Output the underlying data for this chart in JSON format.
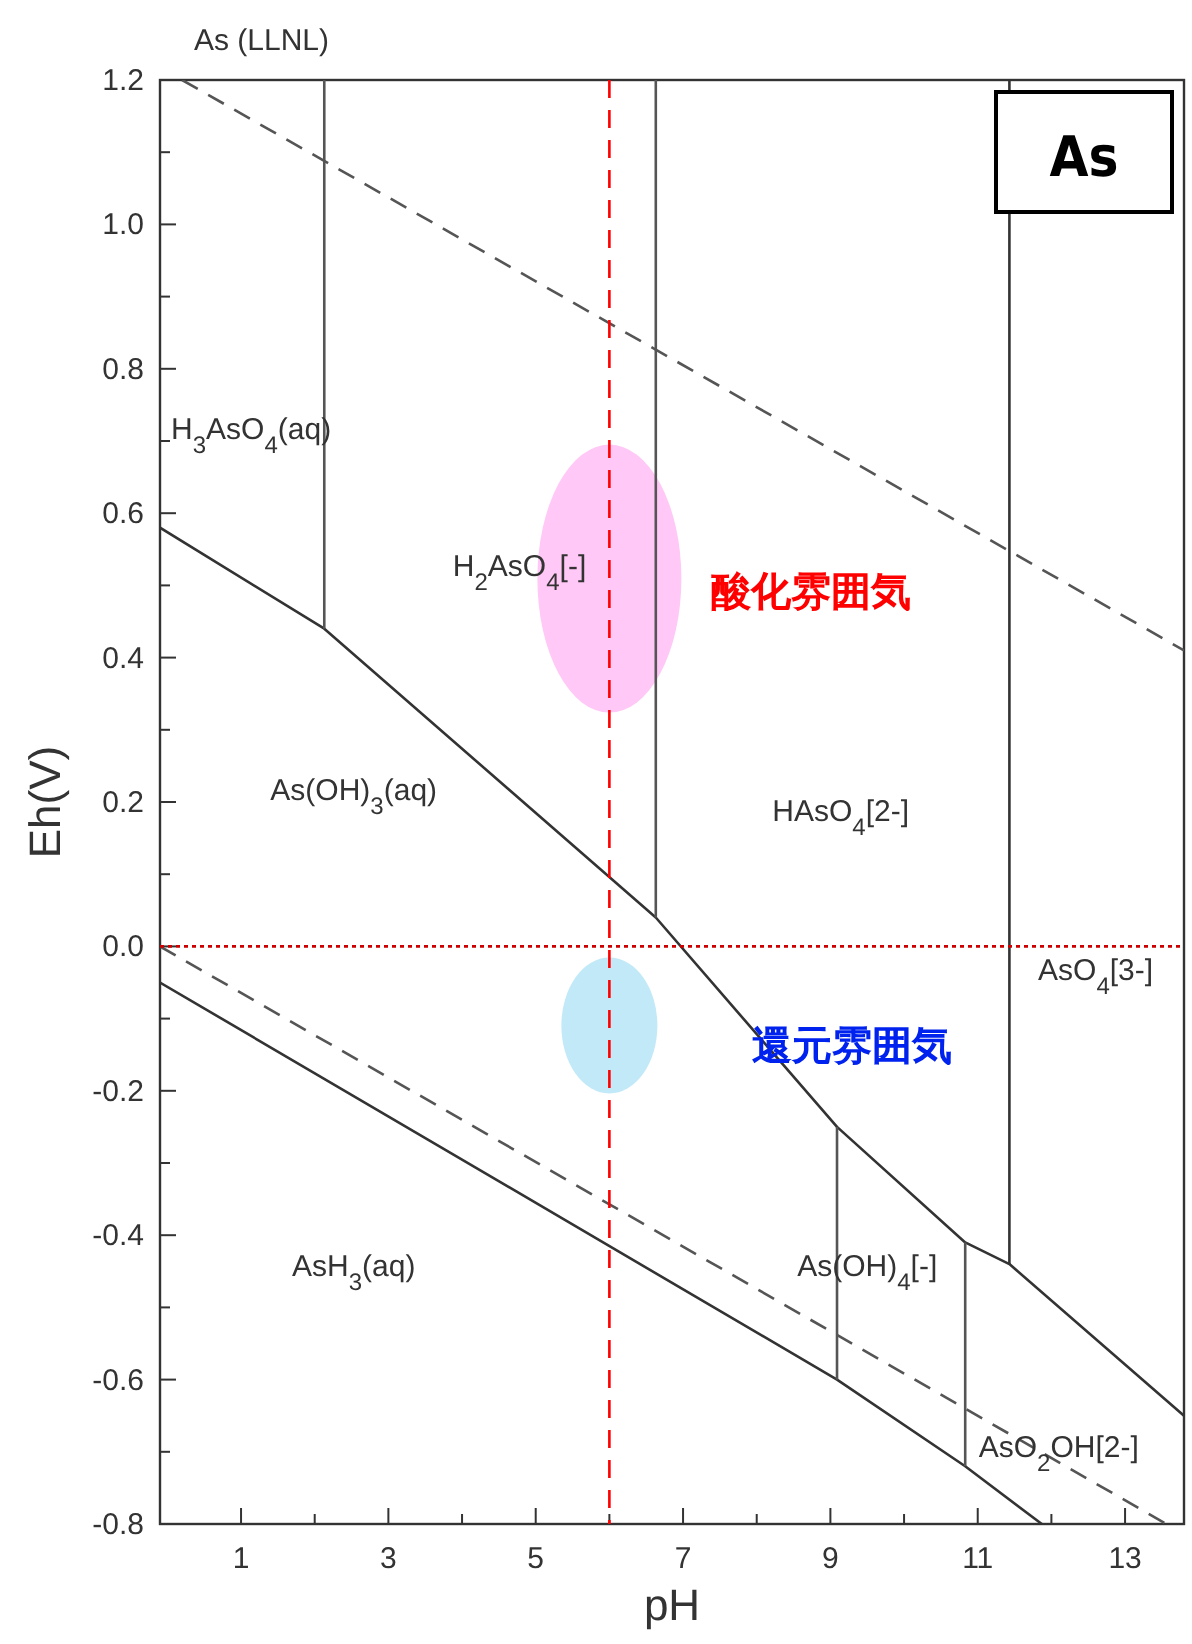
{
  "chart_data": {
    "type": "line",
    "title": "As (LLNL)",
    "xlabel": "pH",
    "ylabel": "Eh(V)",
    "xlim": [
      -0.1,
      13.8
    ],
    "ylim": [
      -0.8,
      1.2
    ],
    "xticks": [
      1,
      {
        "value": 2,
        "label": null
      },
      3,
      {
        "value": 4,
        "label": null
      },
      5,
      {
        "value": 6,
        "label": null
      },
      7,
      {
        "value": 8,
        "label": null
      },
      9,
      {
        "value": 10,
        "label": null
      },
      11,
      {
        "value": 12,
        "label": null
      },
      13
    ],
    "yticks": [
      {
        "value": -0.8,
        "label": "-0.8"
      },
      {
        "value": -0.7,
        "label": null
      },
      {
        "value": -0.6,
        "label": "-0.6"
      },
      {
        "value": -0.5,
        "label": null
      },
      {
        "value": -0.4,
        "label": "-0.4"
      },
      {
        "value": -0.3,
        "label": null
      },
      {
        "value": -0.2,
        "label": "-0.2"
      },
      {
        "value": -0.1,
        "label": null
      },
      {
        "value": 0,
        "label": "0.0"
      },
      {
        "value": 0.1,
        "label": null
      },
      {
        "value": 0.2,
        "label": "0.2"
      },
      {
        "value": 0.3,
        "label": null
      },
      {
        "value": 0.4,
        "label": "0.4"
      },
      {
        "value": 0.5,
        "label": null
      },
      {
        "value": 0.6,
        "label": "0.6"
      },
      {
        "value": 0.7,
        "label": null
      },
      {
        "value": 0.8,
        "label": "0.8"
      },
      {
        "value": 0.9,
        "label": null
      },
      {
        "value": 1.0,
        "label": "1.0"
      },
      {
        "value": 1.1,
        "label": null
      },
      {
        "value": 1.2,
        "label": "1.2"
      }
    ],
    "series": [
      {
        "color": "#555555",
        "line_style": "dashed",
        "x": [
          0.2,
          13.8
        ],
        "values": [
          1.2,
          0.41
        ]
      },
      {
        "color": "#555555",
        "line_style": "dashed",
        "x": [
          -0.1,
          13.56
        ],
        "values": [
          0.0,
          -0.8
        ]
      },
      {
        "color": "#333333",
        "line_style": "solid",
        "x": [
          -0.1,
          2.13,
          6.63,
          9.09,
          10.83,
          11.43,
          13.8
        ],
        "values": [
          0.58,
          0.44,
          0.04,
          -0.25,
          -0.41,
          -0.44,
          -0.65
        ]
      },
      {
        "color": "#333333",
        "line_style": "solid",
        "x": [
          -0.1,
          9.09,
          10.83,
          11.87
        ],
        "values": [
          -0.05,
          -0.6,
          -0.72,
          -0.8
        ]
      },
      {
        "color": "#555555",
        "line_style": "solid",
        "x": [
          2.13,
          2.13
        ],
        "values": [
          1.2,
          0.44
        ]
      },
      {
        "color": "#555555",
        "line_style": "solid",
        "x": [
          6.63,
          6.63
        ],
        "values": [
          1.2,
          0.04
        ]
      },
      {
        "color": "#333333",
        "line_style": "solid",
        "x": [
          11.43,
          11.43
        ],
        "values": [
          1.2,
          -0.44
        ]
      },
      {
        "color": "#555555",
        "line_style": "solid",
        "x": [
          9.09,
          9.09
        ],
        "values": [
          -0.25,
          -0.6
        ]
      },
      {
        "color": "#555555",
        "line_style": "solid",
        "x": [
          10.83,
          10.83
        ],
        "values": [
          -0.41,
          -0.72
        ]
      }
    ],
    "ref_lines": [
      {
        "axis": "x",
        "value": 6.0,
        "color": "#ff0000",
        "line_style": "dashed"
      },
      {
        "axis": "y",
        "value": 0.0,
        "color": "#cc0000",
        "line_style": "dotted"
      }
    ],
    "annotations": [
      "H$_{3}$AsO$_{4}$(aq)",
      "H$_{2}$AsO$_{4}$[-]",
      "As(OH)$_{3}$(aq)",
      "HAsO$_{4}$[2-]",
      "AsO$_{4}$[3-]",
      "AsH$_{3}$(aq)",
      "As(OH)$_{4}$[-]",
      "AsO$_{2}$OH[2-]",
      "酸化雰囲気",
      "還元雰囲気",
      "As"
    ]
  }
}
